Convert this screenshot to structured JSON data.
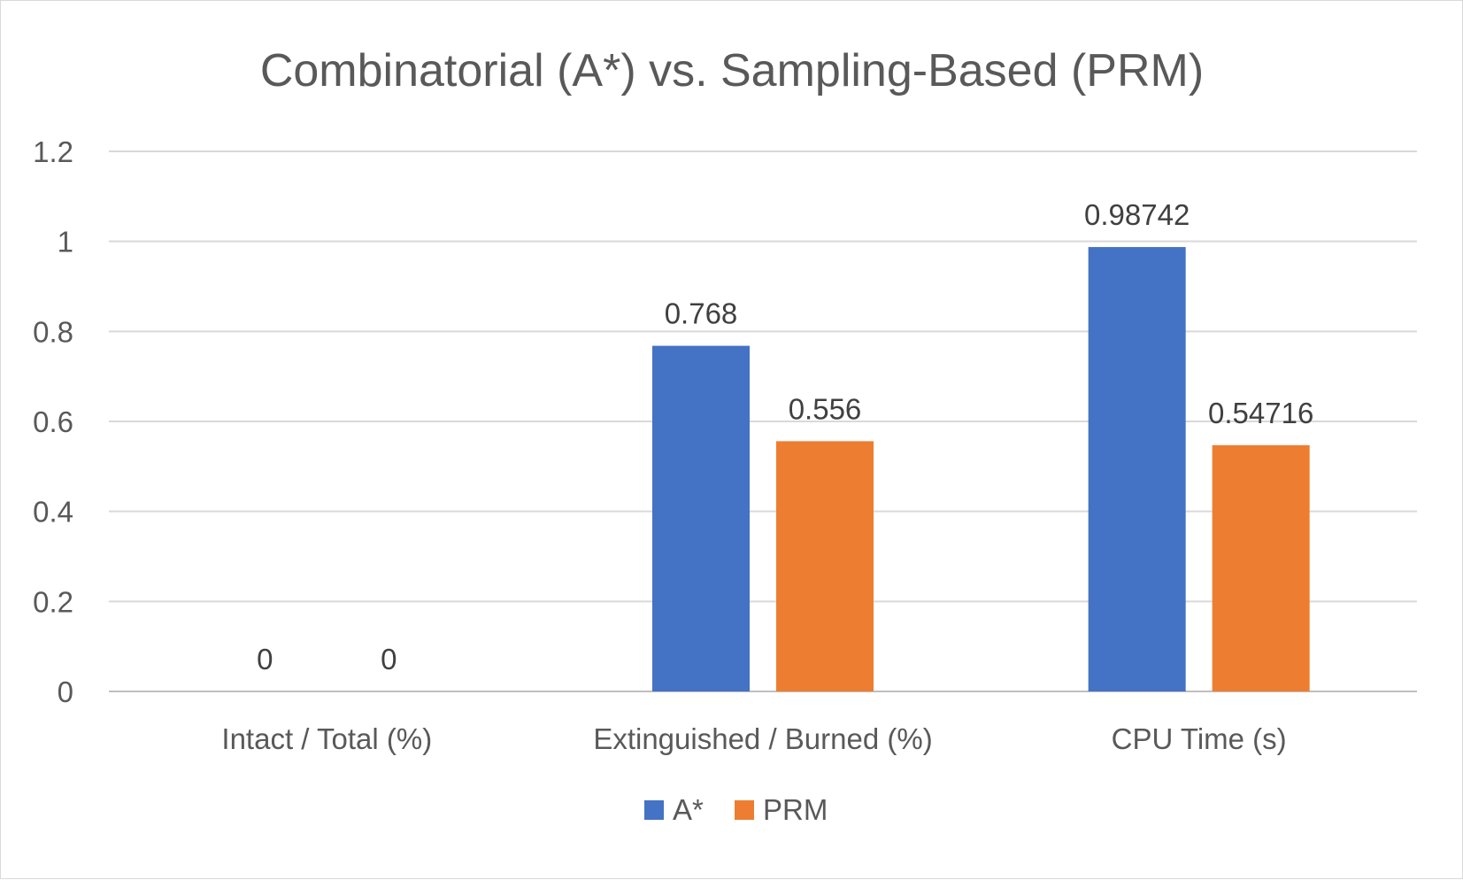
{
  "chart_data": {
    "type": "bar",
    "title": "Combinatorial (A*) vs. Sampling-Based (PRM)",
    "categories": [
      "Intact / Total (%)",
      "Extinguished / Burned (%)",
      "CPU Time (s)"
    ],
    "series": [
      {
        "name": "A*",
        "values": [
          0,
          0.768,
          0.98742
        ],
        "labels": [
          "0",
          "0.768",
          "0.98742"
        ],
        "color": "#4472C4"
      },
      {
        "name": "PRM",
        "values": [
          0,
          0.556,
          0.54716
        ],
        "labels": [
          "0",
          "0.556",
          "0.54716"
        ],
        "color": "#ED7D31"
      }
    ],
    "ylim": [
      0,
      1.2
    ],
    "yticks": [
      0,
      0.2,
      0.4,
      0.6,
      0.8,
      1,
      1.2
    ],
    "ytick_labels": [
      "0",
      "0.2",
      "0.4",
      "0.6",
      "0.8",
      "1",
      "1.2"
    ],
    "grid": true,
    "legend_position": "bottom",
    "xlabel": "",
    "ylabel": ""
  }
}
